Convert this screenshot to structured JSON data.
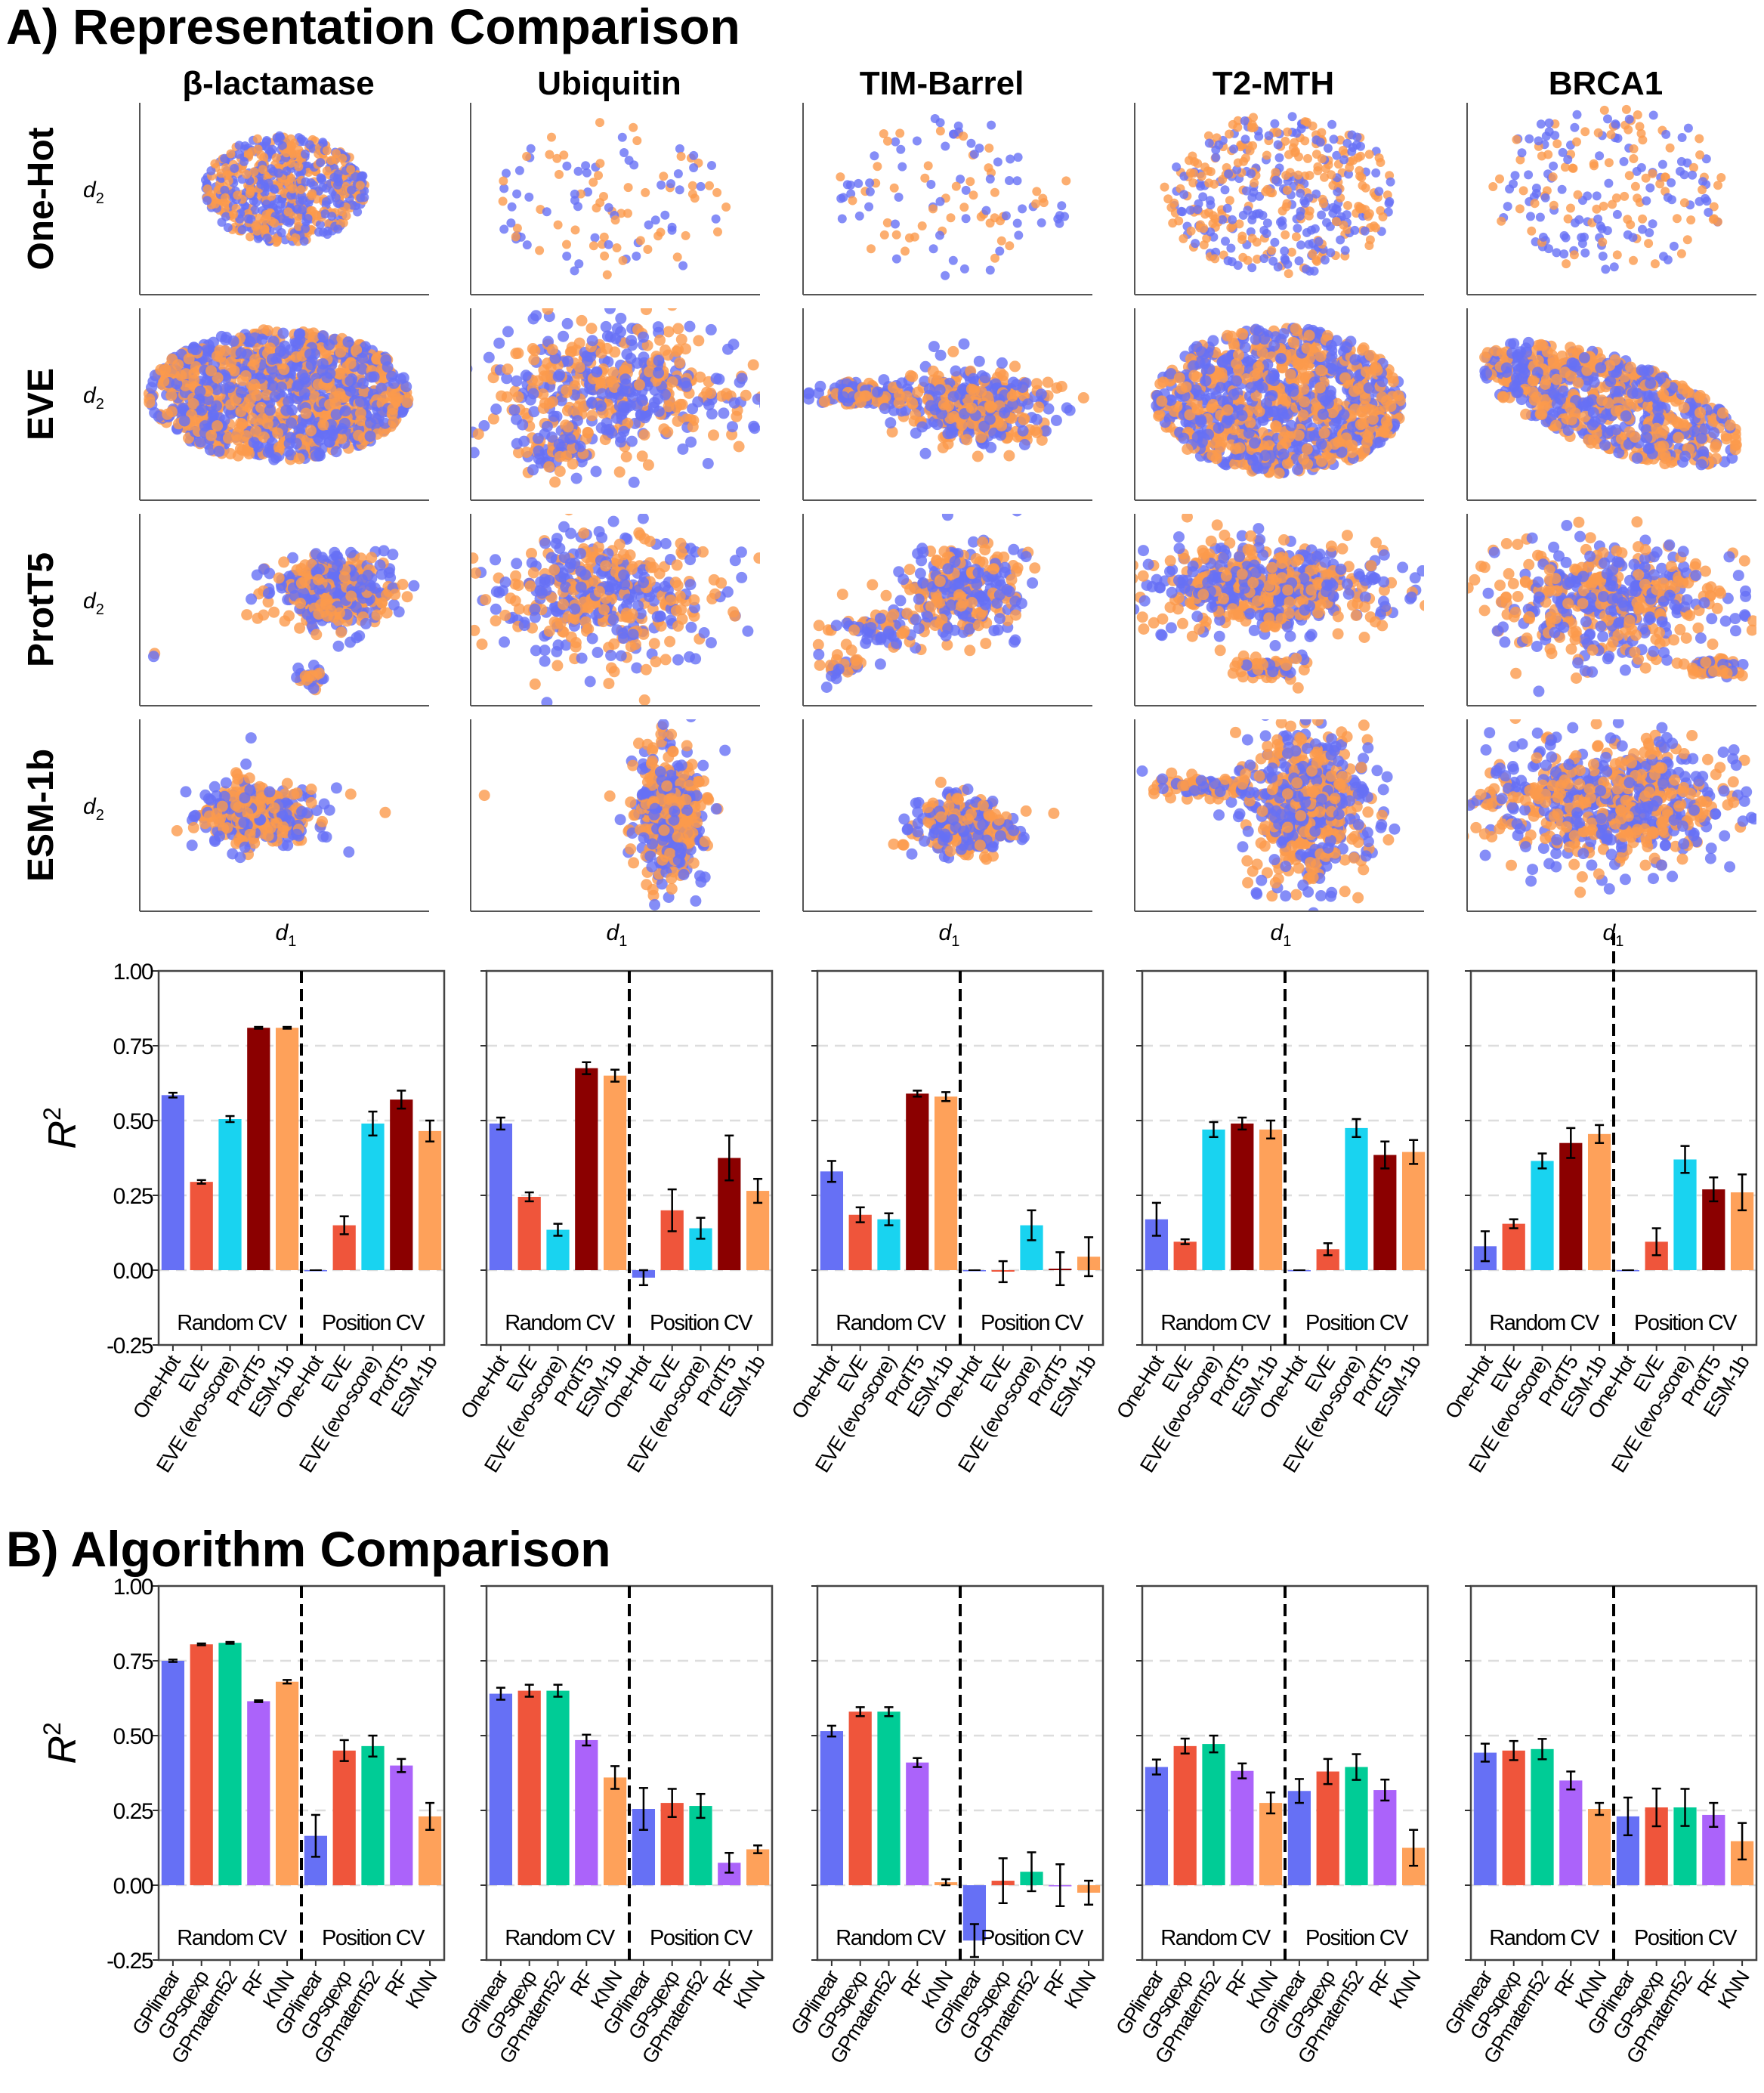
{
  "section_a_title": "A) Representation Comparison",
  "section_b_title": "B) Algorithm Comparison",
  "proteins": [
    "β-lactamase",
    "Ubiquitin",
    "TIM-Barrel",
    "T2-MTH",
    "BRCA1"
  ],
  "representations": [
    "One-Hot",
    "EVE",
    "ProtT5",
    "ESM-1b"
  ],
  "scatter_axes": {
    "x": "d",
    "x_sub": "1",
    "y": "d",
    "y_sub": "2"
  },
  "scatter_colors": [
    "#6670f5",
    "#fb9a4c"
  ],
  "r2_label": {
    "base": "R",
    "sup": "2"
  },
  "region_labels": {
    "random": "Random CV",
    "position": "Position  CV"
  },
  "chart_data": [
    {
      "type": "bar",
      "title": "Representation Comparison",
      "ylabel": "R^2",
      "ylim": [
        -0.25,
        1.0
      ],
      "yticks": [
        "1.00",
        "0.75",
        "0.50",
        "0.25",
        "0.00",
        "-0.25"
      ],
      "yticks_values": [
        1.0,
        0.75,
        0.5,
        0.25,
        0.0,
        -0.25
      ],
      "grid": "dashed horizontal at 0, 0.25, 0.5, 0.75",
      "categories": [
        "One-Hot",
        "EVE",
        "EVE (evo-score)",
        "ProtT5",
        "ESM-1b"
      ],
      "colors": [
        "#6670f5",
        "#ef553b",
        "#19d3f0",
        "#8b0000",
        "#fea15a"
      ],
      "panels": [
        {
          "protein": "β-lactamase",
          "random_cv": {
            "values": [
              0.585,
              0.295,
              0.505,
              0.81,
              0.81
            ],
            "errors": [
              0.008,
              0.006,
              0.01,
              0.003,
              0.003
            ]
          },
          "position_cv": {
            "values": [
              0.0,
              0.15,
              0.49,
              0.57,
              0.465
            ],
            "errors": [
              0.0,
              0.03,
              0.04,
              0.03,
              0.035
            ]
          }
        },
        {
          "protein": "Ubiquitin",
          "random_cv": {
            "values": [
              0.49,
              0.245,
              0.135,
              0.675,
              0.65
            ],
            "errors": [
              0.02,
              0.015,
              0.02,
              0.02,
              0.02
            ]
          },
          "position_cv": {
            "values": [
              -0.025,
              0.2,
              0.14,
              0.375,
              0.265
            ],
            "errors": [
              0.025,
              0.07,
              0.035,
              0.075,
              0.04
            ]
          }
        },
        {
          "protein": "TIM-Barrel",
          "random_cv": {
            "values": [
              0.33,
              0.185,
              0.17,
              0.59,
              0.58
            ],
            "errors": [
              0.035,
              0.025,
              0.02,
              0.01,
              0.015
            ]
          },
          "position_cv": {
            "values": [
              0.0,
              -0.005,
              0.15,
              0.005,
              0.045
            ],
            "errors": [
              0.0,
              0.035,
              0.05,
              0.055,
              0.065
            ]
          }
        },
        {
          "protein": "T2-MTH",
          "random_cv": {
            "values": [
              0.17,
              0.095,
              0.47,
              0.49,
              0.47
            ],
            "errors": [
              0.055,
              0.008,
              0.025,
              0.02,
              0.03
            ]
          },
          "position_cv": {
            "values": [
              0.0,
              0.07,
              0.475,
              0.385,
              0.395
            ],
            "errors": [
              0.0,
              0.02,
              0.03,
              0.045,
              0.04
            ]
          }
        },
        {
          "protein": "BRCA1",
          "random_cv": {
            "values": [
              0.08,
              0.155,
              0.365,
              0.425,
              0.455
            ],
            "errors": [
              0.05,
              0.015,
              0.025,
              0.05,
              0.03
            ]
          },
          "position_cv": {
            "values": [
              0.0,
              0.095,
              0.37,
              0.27,
              0.26
            ],
            "errors": [
              0.0,
              0.045,
              0.045,
              0.04,
              0.06
            ]
          }
        }
      ]
    },
    {
      "type": "bar",
      "title": "Algorithm Comparison",
      "ylabel": "R^2",
      "ylim": [
        -0.25,
        1.0
      ],
      "yticks": [
        "1.00",
        "0.75",
        "0.50",
        "0.25",
        "0.00",
        "-0.25"
      ],
      "yticks_values": [
        1.0,
        0.75,
        0.5,
        0.25,
        0.0,
        -0.25
      ],
      "grid": "dashed horizontal at 0, 0.25, 0.5, 0.75",
      "categories": [
        "GPlinear",
        "GPsqexp",
        "GPmatern52",
        "RF",
        "KNN"
      ],
      "colors": [
        "#6670f5",
        "#ef553b",
        "#00cc96",
        "#ab63fa",
        "#fea15a"
      ],
      "panels": [
        {
          "protein": "β-lactamase",
          "random_cv": {
            "values": [
              0.75,
              0.805,
              0.81,
              0.615,
              0.68
            ],
            "errors": [
              0.004,
              0.003,
              0.003,
              0.003,
              0.006
            ]
          },
          "position_cv": {
            "values": [
              0.165,
              0.45,
              0.465,
              0.4,
              0.23
            ],
            "errors": [
              0.07,
              0.035,
              0.035,
              0.022,
              0.045
            ]
          }
        },
        {
          "protein": "Ubiquitin",
          "random_cv": {
            "values": [
              0.64,
              0.65,
              0.65,
              0.485,
              0.36
            ],
            "errors": [
              0.02,
              0.02,
              0.02,
              0.018,
              0.038
            ]
          },
          "position_cv": {
            "values": [
              0.255,
              0.275,
              0.265,
              0.075,
              0.12
            ],
            "errors": [
              0.07,
              0.047,
              0.04,
              0.033,
              0.013
            ]
          }
        },
        {
          "protein": "TIM-Barrel",
          "random_cv": {
            "values": [
              0.515,
              0.58,
              0.58,
              0.41,
              0.01
            ],
            "errors": [
              0.018,
              0.015,
              0.015,
              0.015,
              0.01
            ]
          },
          "position_cv": {
            "values": [
              -0.185,
              0.015,
              0.045,
              0.0,
              -0.025
            ],
            "errors": [
              0.055,
              0.075,
              0.065,
              0.07,
              0.04
            ]
          }
        },
        {
          "protein": "T2-MTH",
          "random_cv": {
            "values": [
              0.395,
              0.465,
              0.472,
              0.382,
              0.275
            ],
            "errors": [
              0.025,
              0.025,
              0.028,
              0.025,
              0.035
            ]
          },
          "position_cv": {
            "values": [
              0.315,
              0.38,
              0.395,
              0.318,
              0.125
            ],
            "errors": [
              0.04,
              0.042,
              0.043,
              0.035,
              0.06
            ]
          }
        },
        {
          "protein": "BRCA1",
          "random_cv": {
            "values": [
              0.443,
              0.45,
              0.455,
              0.35,
              0.255
            ],
            "errors": [
              0.03,
              0.032,
              0.034,
              0.03,
              0.02
            ]
          },
          "position_cv": {
            "values": [
              0.23,
              0.26,
              0.26,
              0.235,
              0.147
            ],
            "errors": [
              0.063,
              0.063,
              0.062,
              0.04,
              0.061
            ]
          }
        }
      ]
    }
  ]
}
